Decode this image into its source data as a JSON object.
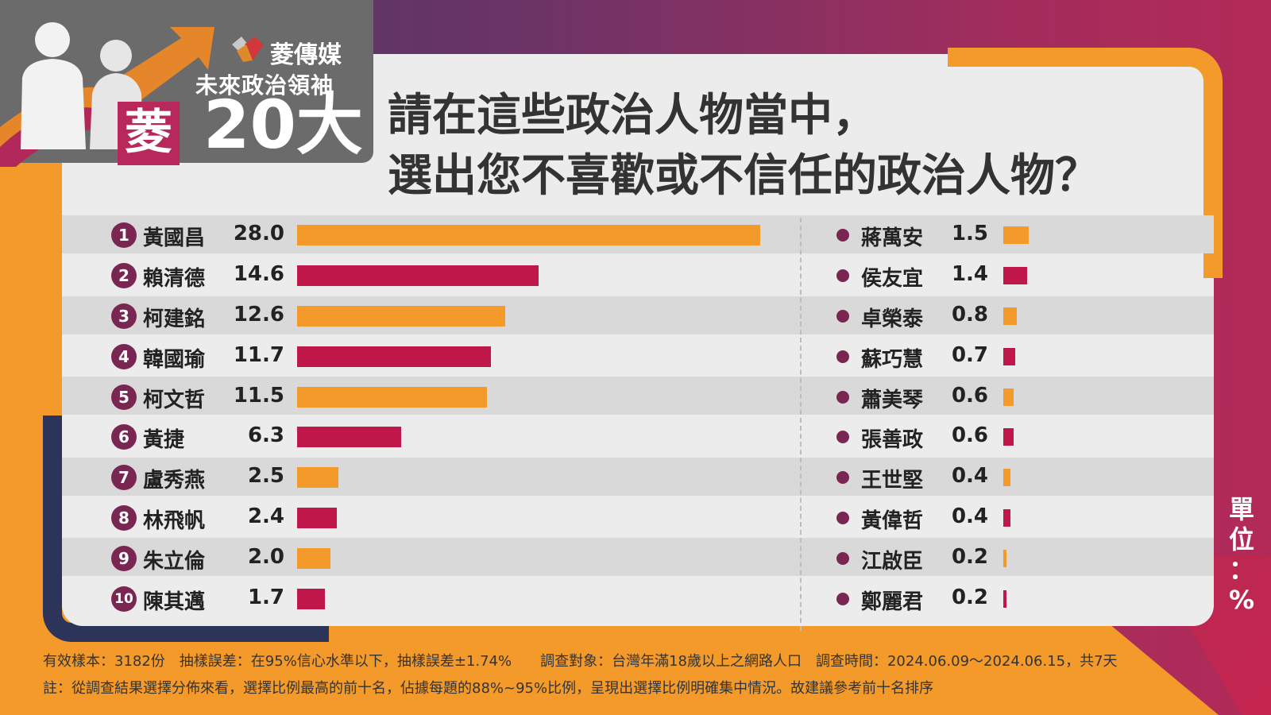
{
  "brand": {
    "name": "菱傳媒",
    "series_title": "未來政治領袖",
    "series_number": "20大",
    "badge_char": "菱"
  },
  "question": {
    "line1": "請在這些政治人物當中，",
    "line2": "選出您不喜歡或不信任的政治人物？"
  },
  "unit_label": [
    "單",
    "位",
    "：",
    "%"
  ],
  "colors": {
    "orange": "#f39a2a",
    "crimson": "#c0174a",
    "plum": "#7a2652",
    "navy": "#2c3559"
  },
  "chart_data": {
    "type": "bar",
    "title": "請在這些政治人物當中，選出您不喜歡或不信任的政治人物？",
    "unit": "%",
    "top10": [
      {
        "rank": "1",
        "name": "黃國昌",
        "value": 28.0,
        "label": "28.0"
      },
      {
        "rank": "2",
        "name": "賴清德",
        "value": 14.6,
        "label": "14.6"
      },
      {
        "rank": "3",
        "name": "柯建銘",
        "value": 12.6,
        "label": "12.6"
      },
      {
        "rank": "4",
        "name": "韓國瑜",
        "value": 11.7,
        "label": "11.7"
      },
      {
        "rank": "5",
        "name": "柯文哲",
        "value": 11.5,
        "label": "11.5"
      },
      {
        "rank": "6",
        "name": "黃捷",
        "value": 6.3,
        "label": "6.3"
      },
      {
        "rank": "7",
        "name": "盧秀燕",
        "value": 2.5,
        "label": "2.5"
      },
      {
        "rank": "8",
        "name": "林飛帆",
        "value": 2.4,
        "label": "2.4"
      },
      {
        "rank": "9",
        "name": "朱立倫",
        "value": 2.0,
        "label": "2.0"
      },
      {
        "rank": "10",
        "name": "陳其邁",
        "value": 1.7,
        "label": "1.7"
      }
    ],
    "others": [
      {
        "name": "蔣萬安",
        "value": 1.5,
        "label": "1.5"
      },
      {
        "name": "侯友宜",
        "value": 1.4,
        "label": "1.4"
      },
      {
        "name": "卓榮泰",
        "value": 0.8,
        "label": "0.8"
      },
      {
        "name": "蘇巧慧",
        "value": 0.7,
        "label": "0.7"
      },
      {
        "name": "蕭美琴",
        "value": 0.6,
        "label": "0.6"
      },
      {
        "name": "張善政",
        "value": 0.6,
        "label": "0.6"
      },
      {
        "name": "王世堅",
        "value": 0.4,
        "label": "0.4"
      },
      {
        "name": "黃偉哲",
        "value": 0.4,
        "label": "0.4"
      },
      {
        "name": "江啟臣",
        "value": 0.2,
        "label": "0.2"
      },
      {
        "name": "鄭麗君",
        "value": 0.2,
        "label": "0.2"
      }
    ]
  },
  "footer": {
    "line1": "有效樣本：3182份　抽樣誤差：在95%信心水準以下，抽樣誤差±1.74%　　調查對象：台灣年滿18歲以上之網路人口　調查時間：2024.06.09～2024.06.15，共7天",
    "line2": "註：從調查結果選擇分佈來看，選擇比例最高的前十名，佔據每題的88%~95%比例，呈現出選擇比例明確集中情況。故建議參考前十名排序"
  }
}
